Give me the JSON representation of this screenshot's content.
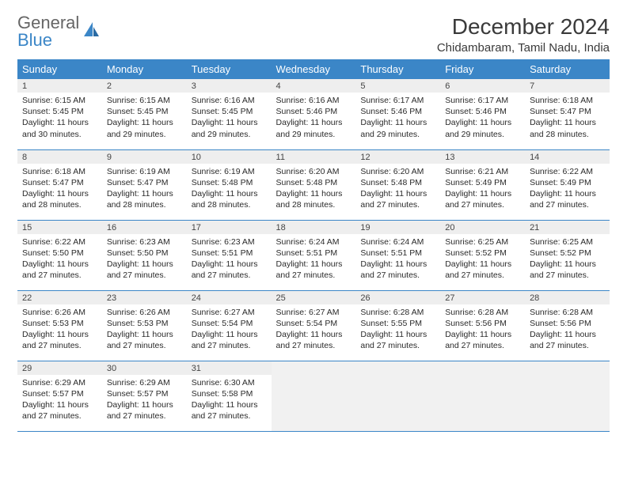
{
  "brand": {
    "word1": "General",
    "word2": "Blue"
  },
  "title": "December 2024",
  "location": "Chidambaram, Tamil Nadu, India",
  "colors": {
    "header_bg": "#3b86c7",
    "header_text": "#ffffff",
    "daynum_bg": "#eeeeee",
    "row_border": "#3b86c7",
    "empty_bg": "#f1f1f1"
  },
  "columns": [
    "Sunday",
    "Monday",
    "Tuesday",
    "Wednesday",
    "Thursday",
    "Friday",
    "Saturday"
  ],
  "weeks": [
    [
      {
        "n": "1",
        "sr": "6:15 AM",
        "ss": "5:45 PM",
        "dl": "11 hours and 30 minutes."
      },
      {
        "n": "2",
        "sr": "6:15 AM",
        "ss": "5:45 PM",
        "dl": "11 hours and 29 minutes."
      },
      {
        "n": "3",
        "sr": "6:16 AM",
        "ss": "5:45 PM",
        "dl": "11 hours and 29 minutes."
      },
      {
        "n": "4",
        "sr": "6:16 AM",
        "ss": "5:46 PM",
        "dl": "11 hours and 29 minutes."
      },
      {
        "n": "5",
        "sr": "6:17 AM",
        "ss": "5:46 PM",
        "dl": "11 hours and 29 minutes."
      },
      {
        "n": "6",
        "sr": "6:17 AM",
        "ss": "5:46 PM",
        "dl": "11 hours and 29 minutes."
      },
      {
        "n": "7",
        "sr": "6:18 AM",
        "ss": "5:47 PM",
        "dl": "11 hours and 28 minutes."
      }
    ],
    [
      {
        "n": "8",
        "sr": "6:18 AM",
        "ss": "5:47 PM",
        "dl": "11 hours and 28 minutes."
      },
      {
        "n": "9",
        "sr": "6:19 AM",
        "ss": "5:47 PM",
        "dl": "11 hours and 28 minutes."
      },
      {
        "n": "10",
        "sr": "6:19 AM",
        "ss": "5:48 PM",
        "dl": "11 hours and 28 minutes."
      },
      {
        "n": "11",
        "sr": "6:20 AM",
        "ss": "5:48 PM",
        "dl": "11 hours and 28 minutes."
      },
      {
        "n": "12",
        "sr": "6:20 AM",
        "ss": "5:48 PM",
        "dl": "11 hours and 27 minutes."
      },
      {
        "n": "13",
        "sr": "6:21 AM",
        "ss": "5:49 PM",
        "dl": "11 hours and 27 minutes."
      },
      {
        "n": "14",
        "sr": "6:22 AM",
        "ss": "5:49 PM",
        "dl": "11 hours and 27 minutes."
      }
    ],
    [
      {
        "n": "15",
        "sr": "6:22 AM",
        "ss": "5:50 PM",
        "dl": "11 hours and 27 minutes."
      },
      {
        "n": "16",
        "sr": "6:23 AM",
        "ss": "5:50 PM",
        "dl": "11 hours and 27 minutes."
      },
      {
        "n": "17",
        "sr": "6:23 AM",
        "ss": "5:51 PM",
        "dl": "11 hours and 27 minutes."
      },
      {
        "n": "18",
        "sr": "6:24 AM",
        "ss": "5:51 PM",
        "dl": "11 hours and 27 minutes."
      },
      {
        "n": "19",
        "sr": "6:24 AM",
        "ss": "5:51 PM",
        "dl": "11 hours and 27 minutes."
      },
      {
        "n": "20",
        "sr": "6:25 AM",
        "ss": "5:52 PM",
        "dl": "11 hours and 27 minutes."
      },
      {
        "n": "21",
        "sr": "6:25 AM",
        "ss": "5:52 PM",
        "dl": "11 hours and 27 minutes."
      }
    ],
    [
      {
        "n": "22",
        "sr": "6:26 AM",
        "ss": "5:53 PM",
        "dl": "11 hours and 27 minutes."
      },
      {
        "n": "23",
        "sr": "6:26 AM",
        "ss": "5:53 PM",
        "dl": "11 hours and 27 minutes."
      },
      {
        "n": "24",
        "sr": "6:27 AM",
        "ss": "5:54 PM",
        "dl": "11 hours and 27 minutes."
      },
      {
        "n": "25",
        "sr": "6:27 AM",
        "ss": "5:54 PM",
        "dl": "11 hours and 27 minutes."
      },
      {
        "n": "26",
        "sr": "6:28 AM",
        "ss": "5:55 PM",
        "dl": "11 hours and 27 minutes."
      },
      {
        "n": "27",
        "sr": "6:28 AM",
        "ss": "5:56 PM",
        "dl": "11 hours and 27 minutes."
      },
      {
        "n": "28",
        "sr": "6:28 AM",
        "ss": "5:56 PM",
        "dl": "11 hours and 27 minutes."
      }
    ],
    [
      {
        "n": "29",
        "sr": "6:29 AM",
        "ss": "5:57 PM",
        "dl": "11 hours and 27 minutes."
      },
      {
        "n": "30",
        "sr": "6:29 AM",
        "ss": "5:57 PM",
        "dl": "11 hours and 27 minutes."
      },
      {
        "n": "31",
        "sr": "6:30 AM",
        "ss": "5:58 PM",
        "dl": "11 hours and 27 minutes."
      },
      null,
      null,
      null,
      null
    ]
  ],
  "labels": {
    "sunrise": "Sunrise: ",
    "sunset": "Sunset: ",
    "daylight": "Daylight: "
  }
}
